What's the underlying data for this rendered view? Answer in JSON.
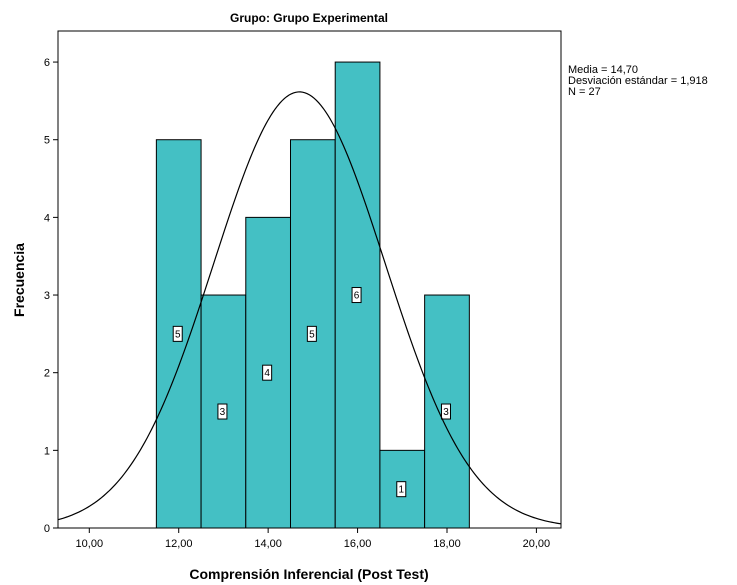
{
  "chart_data": {
    "type": "bar",
    "title": "Grupo: Grupo Experimental",
    "xlabel": "Comprensión Inferencial (Post Test)",
    "ylabel": "Frecuencia",
    "bin_width": 1,
    "bin_centers": [
      12,
      13,
      14,
      15,
      16,
      17,
      18
    ],
    "values": [
      5,
      3,
      4,
      5,
      6,
      1,
      3
    ],
    "value_labels": [
      "5",
      "3",
      "4",
      "5",
      "6",
      "1",
      "3"
    ],
    "xlim": [
      9.3,
      20.55
    ],
    "ylim": [
      0,
      6.4
    ],
    "x_ticks": [
      10,
      12,
      14,
      16,
      18,
      20
    ],
    "x_tick_labels": [
      "10,00",
      "12,00",
      "14,00",
      "16,00",
      "18,00",
      "20,00"
    ],
    "y_ticks": [
      0,
      1,
      2,
      3,
      4,
      5,
      6
    ],
    "y_tick_labels": [
      "0",
      "1",
      "2",
      "3",
      "4",
      "5",
      "6"
    ],
    "normal_curve": {
      "mean": 14.7,
      "sd": 1.918,
      "n": 27
    },
    "grid": false,
    "legend": "none",
    "bar_color": "#44c0c4",
    "stats": [
      "Media = 14,70",
      "Desviación estándar = 1,918",
      "N = 27"
    ]
  }
}
